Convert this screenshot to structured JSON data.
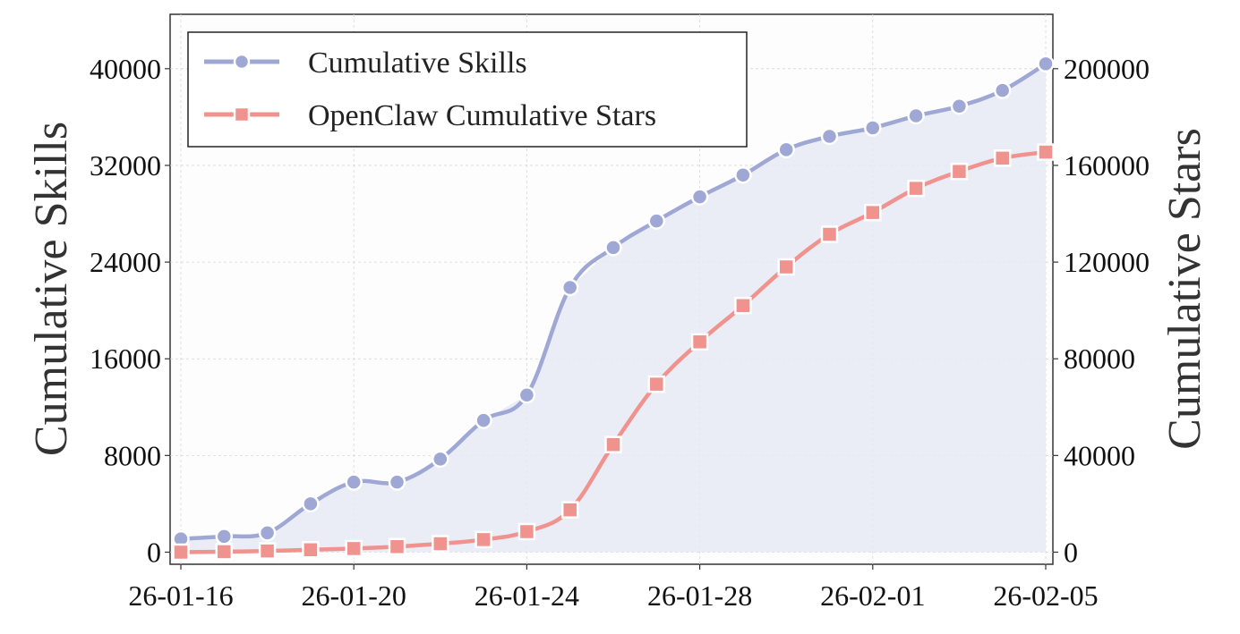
{
  "chart_data": {
    "type": "line",
    "x_format": "YY-MM-DD",
    "x": [
      "26-01-16",
      "26-01-17",
      "26-01-18",
      "26-01-19",
      "26-01-20",
      "26-01-21",
      "26-01-22",
      "26-01-23",
      "26-01-24",
      "26-01-25",
      "26-01-26",
      "26-01-27",
      "26-01-28",
      "26-01-29",
      "26-01-30",
      "26-01-31",
      "26-02-01",
      "26-02-02",
      "26-02-03",
      "26-02-04",
      "26-02-05"
    ],
    "x_ticks": [
      "26-01-16",
      "26-01-20",
      "26-01-24",
      "26-01-28",
      "26-02-01",
      "26-02-05"
    ],
    "xlim": [
      "26-01-16",
      "26-02-05"
    ],
    "ylabel": "Cumulative Skills",
    "y2label": "Cumulative Stars",
    "ylim": [
      -1000,
      44500
    ],
    "y2lim": [
      -5000,
      222500
    ],
    "y_ticks": [
      "0",
      "8000",
      "16000",
      "24000",
      "32000",
      "40000"
    ],
    "y2_ticks": [
      "0",
      "40000",
      "80000",
      "120000",
      "160000",
      "200000"
    ],
    "grid": true,
    "legend_position": "top-left",
    "series": [
      {
        "name": "Cumulative Skills",
        "axis": "left",
        "color": "#9fa8d4",
        "marker": "circle",
        "fill_area": true,
        "values": [
          1100,
          1300,
          1600,
          4000,
          5800,
          5800,
          7700,
          10900,
          13000,
          21900,
          25200,
          27400,
          29400,
          31200,
          33300,
          34400,
          35100,
          36100,
          36900,
          38200,
          40400
        ]
      },
      {
        "name": "OpenClaw Cumulative Stars",
        "axis": "right",
        "color": "#f0928d",
        "marker": "square",
        "fill_area": false,
        "values": [
          0,
          200,
          500,
          1000,
          1500,
          2300,
          3500,
          5200,
          8500,
          17500,
          44500,
          69500,
          87000,
          102000,
          118000,
          131500,
          140500,
          150500,
          157500,
          163000,
          165500
        ]
      }
    ]
  }
}
